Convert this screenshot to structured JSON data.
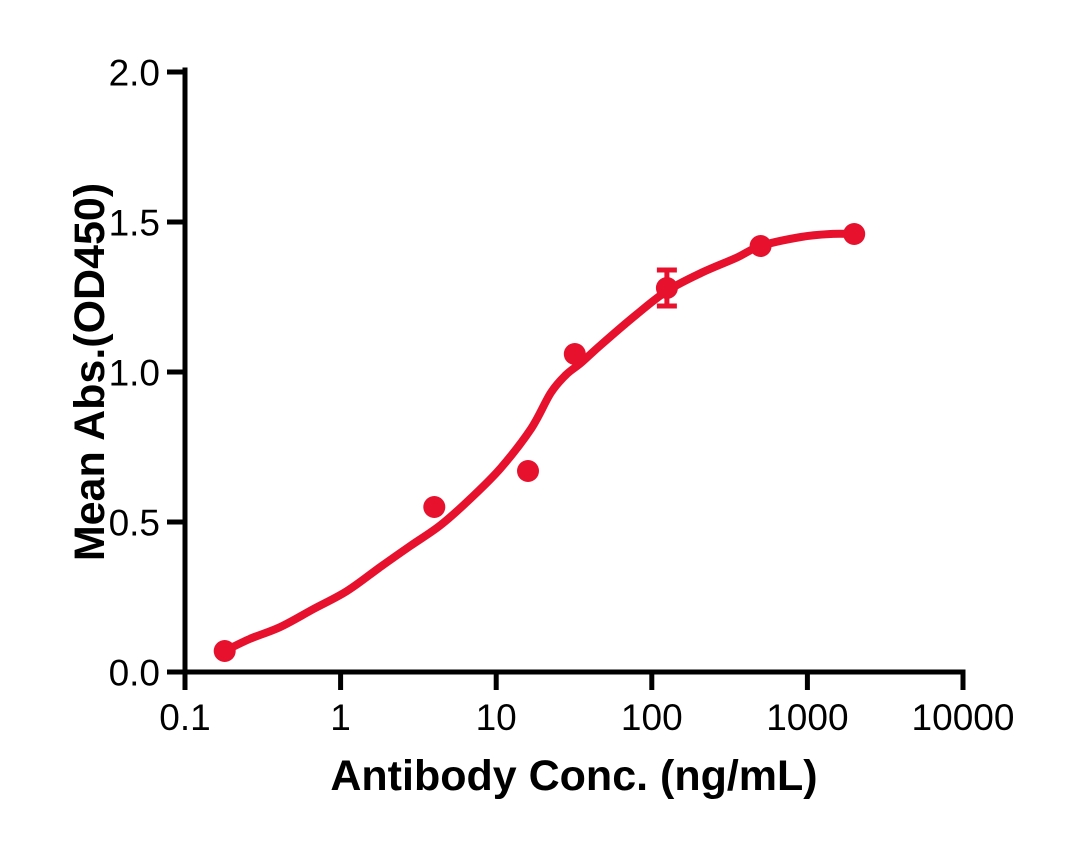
{
  "page": {
    "background": "#FFFFFF"
  },
  "chart_data": {
    "type": "scatter",
    "title": "",
    "xlabel": "Antibody Conc. (ng/mL)",
    "ylabel": "Mean Abs.(OD450)",
    "x_scale": "log",
    "xlim": [
      0.1,
      10000
    ],
    "ylim": [
      0.0,
      2.0
    ],
    "x_tick_values": [
      0.1,
      1,
      10,
      100,
      1000,
      10000
    ],
    "x_tick_labels": [
      "0.1",
      "1",
      "10",
      "100",
      "1000",
      "10000"
    ],
    "y_tick_values": [
      0.0,
      0.5,
      1.0,
      1.5,
      2.0
    ],
    "y_tick_labels": [
      "0.0",
      "0.5",
      "1.0",
      "1.5",
      "2.0"
    ],
    "grid": false,
    "legend": false,
    "axis_color": "#000000",
    "series": [
      {
        "color": "#E8112D",
        "marker": "circle",
        "points": [
          {
            "x": 0.18,
            "y": 0.07
          },
          {
            "x": 4,
            "y": 0.55
          },
          {
            "x": 16,
            "y": 0.67
          },
          {
            "x": 32,
            "y": 1.06
          },
          {
            "x": 125,
            "y": 1.28,
            "err": 0.06
          },
          {
            "x": 500,
            "y": 1.42
          },
          {
            "x": 2000,
            "y": 1.46
          }
        ],
        "fit_curve": [
          [
            0.18,
            0.07
          ],
          [
            0.26,
            0.11
          ],
          [
            0.41,
            0.15
          ],
          [
            0.67,
            0.21
          ],
          [
            1.1,
            0.27
          ],
          [
            1.8,
            0.35
          ],
          [
            2.8,
            0.42
          ],
          [
            4.4,
            0.49
          ],
          [
            6.9,
            0.58
          ],
          [
            10.7,
            0.68
          ],
          [
            16.7,
            0.81
          ],
          [
            22.4,
            0.93
          ],
          [
            28,
            0.99
          ],
          [
            35,
            1.03
          ],
          [
            47,
            1.09
          ],
          [
            79,
            1.19
          ],
          [
            125,
            1.27
          ],
          [
            207,
            1.33
          ],
          [
            347,
            1.38
          ],
          [
            500,
            1.42
          ],
          [
            908,
            1.45
          ],
          [
            1416,
            1.46
          ],
          [
            2000,
            1.46
          ]
        ]
      }
    ]
  }
}
